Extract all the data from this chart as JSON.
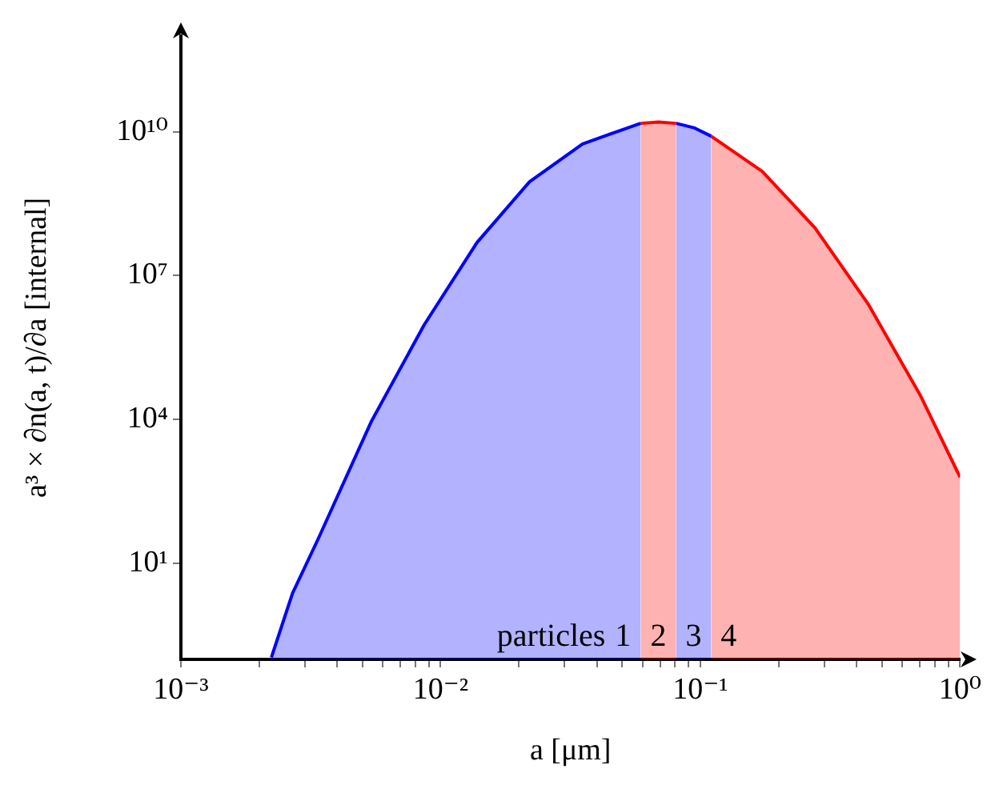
{
  "chart_data": {
    "type": "area",
    "xlabel": "a [μm]",
    "ylabel": "a³ × ∂n(a, t)/∂a [internal]",
    "log": "xy",
    "annotations": [
      "particles"
    ],
    "xlim": [
      0.001,
      1
    ],
    "ylim": [
      0.1,
      1000000000000
    ],
    "xticks": [
      {
        "value": 0.001,
        "label": "10⁻³"
      },
      {
        "value": 0.002,
        "label": null
      },
      {
        "value": 0.003,
        "label": null
      },
      {
        "value": 0.004,
        "label": null
      },
      {
        "value": 0.005,
        "label": null
      },
      {
        "value": 0.006,
        "label": null
      },
      {
        "value": 0.007,
        "label": null
      },
      {
        "value": 0.008,
        "label": null
      },
      {
        "value": 0.009,
        "label": null
      },
      {
        "value": 0.01,
        "label": "10⁻²"
      },
      {
        "value": 0.02,
        "label": null
      },
      {
        "value": 0.03,
        "label": null
      },
      {
        "value": 0.04,
        "label": null
      },
      {
        "value": 0.05,
        "label": null
      },
      {
        "value": 0.06,
        "label": null
      },
      {
        "value": 0.07,
        "label": null
      },
      {
        "value": 0.08,
        "label": null
      },
      {
        "value": 0.09,
        "label": null
      },
      {
        "value": 0.1,
        "label": "10⁻¹"
      },
      {
        "value": 0.2,
        "label": null
      },
      {
        "value": 0.3,
        "label": null
      },
      {
        "value": 0.4,
        "label": null
      },
      {
        "value": 0.5,
        "label": null
      },
      {
        "value": 0.6,
        "label": null
      },
      {
        "value": 0.7,
        "label": null
      },
      {
        "value": 0.8,
        "label": null
      },
      {
        "value": 0.9,
        "label": null
      },
      {
        "value": 1,
        "label": "10⁰"
      }
    ],
    "yticks": [
      {
        "value": 10,
        "label": "10¹"
      },
      {
        "value": 10000,
        "label": "10⁴"
      },
      {
        "value": 10000000,
        "label": "10⁷"
      },
      {
        "value": 10000000000,
        "label": "10¹⁰"
      }
    ],
    "series": [
      {
        "name": "1",
        "color": "#0000ff",
        "x": [
          0.00223,
          0.00269,
          0.00339,
          0.00542,
          0.00865,
          0.0138,
          0.022,
          0.0352,
          0.0589
        ],
        "values": [
          0.11,
          2.4,
          34,
          9300,
          950000,
          49000000,
          910000000,
          5600000000,
          15000000000
        ]
      },
      {
        "name": "2",
        "color": "#ff0000",
        "x": [
          0.0589,
          0.069,
          0.0807
        ],
        "values": [
          15000000000,
          16000000000,
          15000000000
        ]
      },
      {
        "name": "3",
        "color": "#0000ff",
        "x": [
          0.0807,
          0.095,
          0.11
        ],
        "values": [
          15000000000,
          12000000000,
          8100000000
        ]
      },
      {
        "name": "4",
        "color": "#ff0000",
        "x": [
          0.11,
          0.173,
          0.276,
          0.442,
          0.705,
          1
        ],
        "values": [
          8100000000,
          1500000000,
          100000000,
          2600000,
          31000,
          630
        ]
      }
    ]
  }
}
